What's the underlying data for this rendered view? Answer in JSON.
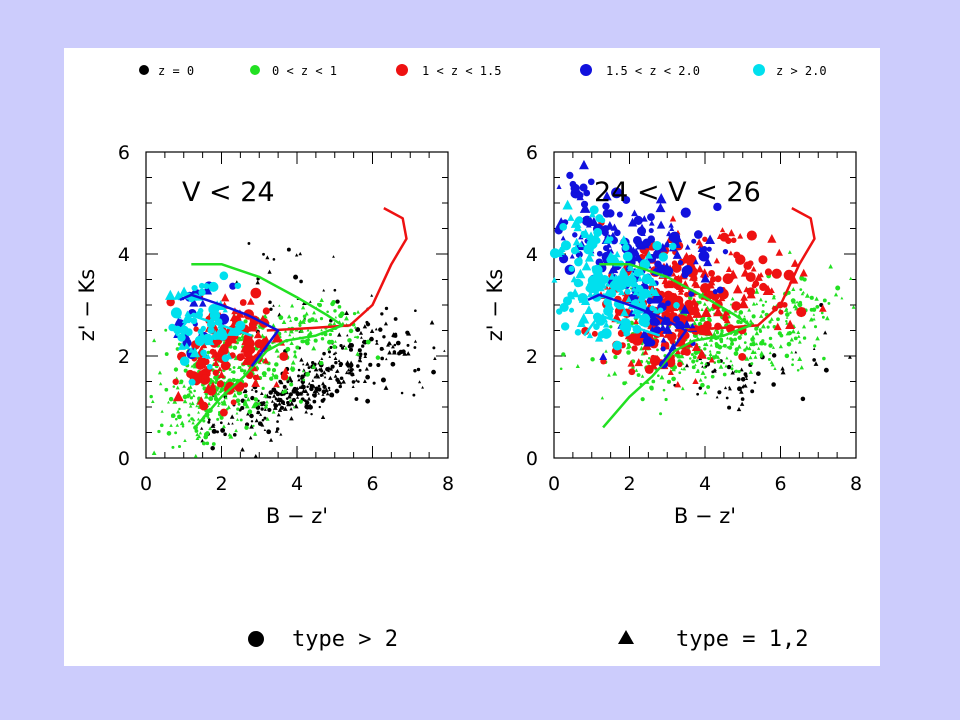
{
  "colors": {
    "page_background": "#ccccfc",
    "figure_background": "#ffffff",
    "z_0": "#000000",
    "z_0_1": "#22e022",
    "z_1_1p5": "#ee1111",
    "z_1p5_2": "#1111dd",
    "z_gt_2": "#00e0ee"
  },
  "legend": {
    "redshift": [
      {
        "label": "z = 0",
        "color": "#000000"
      },
      {
        "label": "0 < z < 1",
        "color": "#22e022"
      },
      {
        "label": "1 < z < 1.5",
        "color": "#ee1111"
      },
      {
        "label": "1.5 < z < 2.0",
        "color": "#1111dd"
      },
      {
        "label": "z > 2.0",
        "color": "#00e0ee"
      }
    ],
    "markers": [
      {
        "label": "type > 2",
        "icon": "filled-circle"
      },
      {
        "label": "type = 1,2",
        "icon": "filled-triangle"
      }
    ]
  },
  "chart_data": [
    {
      "type": "scatter",
      "panel_label": "V < 24",
      "xlabel": "B − z'",
      "ylabel": "z' − Ks",
      "xlim": [
        0,
        8
      ],
      "ylim": [
        0,
        6
      ],
      "xticks": [
        0,
        2,
        4,
        6,
        8
      ],
      "yticks": [
        0,
        2,
        4,
        6
      ],
      "grid": false,
      "series": [
        {
          "name": "z = 0",
          "color": "#000000",
          "clusters": [
            {
              "cx": 4.4,
              "cy": 1.45,
              "sx": 1.0,
              "sy": 0.3,
              "n": 260,
              "tilt": 0.35
            },
            {
              "cx": 6.3,
              "cy": 2.2,
              "sx": 1.0,
              "sy": 0.5,
              "n": 70,
              "tilt": 0.0
            },
            {
              "cx": 2.5,
              "cy": 0.9,
              "sx": 0.8,
              "sy": 0.35,
              "n": 40,
              "tilt": 0.4
            },
            {
              "cx": 3.6,
              "cy": 3.4,
              "sx": 0.8,
              "sy": 0.6,
              "n": 25,
              "tilt": 0.0
            }
          ]
        },
        {
          "name": "0 < z < 1",
          "color": "#22e022",
          "clusters": [
            {
              "cx": 2.2,
              "cy": 1.6,
              "sx": 0.8,
              "sy": 0.55,
              "n": 330,
              "tilt": 0.1
            },
            {
              "cx": 4.2,
              "cy": 2.5,
              "sx": 0.8,
              "sy": 0.35,
              "n": 120,
              "tilt": 0.0
            },
            {
              "cx": 1.3,
              "cy": 0.8,
              "sx": 0.35,
              "sy": 0.4,
              "n": 40,
              "tilt": 0.0
            }
          ]
        },
        {
          "name": "1 < z < 1.5",
          "color": "#ee1111",
          "clusters": [
            {
              "cx": 2.4,
              "cy": 2.3,
              "sx": 0.65,
              "sy": 0.45,
              "n": 110,
              "tilt": 0.0
            },
            {
              "cx": 1.5,
              "cy": 1.7,
              "sx": 0.35,
              "sy": 0.35,
              "n": 25,
              "tilt": 0.0
            }
          ]
        },
        {
          "name": "1.5 < z < 2.0",
          "color": "#1111dd",
          "clusters": [
            {
              "cx": 1.2,
              "cy": 2.8,
              "sx": 0.35,
              "sy": 0.4,
              "n": 22,
              "tilt": 0.0
            }
          ]
        },
        {
          "name": "z > 2.0",
          "color": "#00e0ee",
          "clusters": [
            {
              "cx": 1.5,
              "cy": 2.6,
              "sx": 0.4,
              "sy": 0.45,
              "n": 65,
              "tilt": 0.0
            }
          ]
        }
      ],
      "tracks": [
        {
          "color": "#ee1111",
          "points": [
            [
              3.2,
              2.5
            ],
            [
              4.4,
              2.55
            ],
            [
              5.4,
              2.6
            ],
            [
              6.0,
              3.0
            ],
            [
              6.5,
              3.8
            ],
            [
              6.9,
              4.3
            ],
            [
              6.8,
              4.7
            ],
            [
              6.3,
              4.9
            ]
          ]
        },
        {
          "color": "#22e022",
          "points": [
            [
              1.2,
              3.8
            ],
            [
              2.0,
              3.8
            ],
            [
              3.0,
              3.55
            ],
            [
              4.0,
              3.15
            ],
            [
              4.8,
              2.8
            ],
            [
              5.2,
              2.6
            ],
            [
              4.5,
              2.4
            ],
            [
              3.7,
              2.3
            ],
            [
              3.2,
              2.1
            ],
            [
              2.6,
              1.6
            ],
            [
              2.0,
              1.2
            ],
            [
              1.3,
              0.6
            ]
          ]
        },
        {
          "color": "#1111dd",
          "points": [
            [
              0.9,
              3.1
            ],
            [
              1.2,
              3.2
            ],
            [
              2.0,
              3.0
            ],
            [
              2.7,
              2.8
            ],
            [
              3.5,
              2.5
            ],
            [
              3.2,
              2.2
            ],
            [
              2.8,
              1.8
            ]
          ]
        },
        {
          "color": "#00e0ee",
          "points": [
            [
              0.8,
              2.4
            ],
            [
              1.2,
              2.8
            ],
            [
              2.0,
              2.6
            ],
            [
              2.8,
              2.4
            ]
          ]
        }
      ]
    },
    {
      "type": "scatter",
      "panel_label": "24 < V < 26",
      "xlabel": "B − z'",
      "ylabel": "z' − Ks",
      "xlim": [
        0,
        8
      ],
      "ylim": [
        0,
        6
      ],
      "xticks": [
        0,
        2,
        4,
        6,
        8
      ],
      "yticks": [
        0,
        2,
        4,
        6
      ],
      "grid": false,
      "series": [
        {
          "name": "z = 0",
          "color": "#000000",
          "clusters": [
            {
              "cx": 4.8,
              "cy": 1.55,
              "sx": 0.55,
              "sy": 0.25,
              "n": 45,
              "tilt": 0.0
            },
            {
              "cx": 7.0,
              "cy": 2.2,
              "sx": 0.5,
              "sy": 0.4,
              "n": 10,
              "tilt": 0.0
            }
          ]
        },
        {
          "name": "0 < z < 1",
          "color": "#22e022",
          "clusters": [
            {
              "cx": 4.3,
              "cy": 2.4,
              "sx": 1.1,
              "sy": 0.45,
              "n": 300,
              "tilt": 0.0
            },
            {
              "cx": 6.3,
              "cy": 2.9,
              "sx": 0.6,
              "sy": 0.35,
              "n": 80,
              "tilt": 0.0
            },
            {
              "cx": 2.6,
              "cy": 2.0,
              "sx": 0.7,
              "sy": 0.4,
              "n": 80,
              "tilt": 0.0
            }
          ]
        },
        {
          "name": "1 < z < 1.5",
          "color": "#ee1111",
          "clusters": [
            {
              "cx": 3.2,
              "cy": 3.1,
              "sx": 0.9,
              "sy": 0.65,
              "n": 200,
              "tilt": 0.0
            },
            {
              "cx": 5.3,
              "cy": 3.4,
              "sx": 0.8,
              "sy": 0.5,
              "n": 50,
              "tilt": 0.0
            },
            {
              "cx": 2.6,
              "cy": 2.2,
              "sx": 0.4,
              "sy": 0.4,
              "n": 40,
              "tilt": 0.0
            }
          ]
        },
        {
          "name": "1.5 < z < 2.0",
          "color": "#1111dd",
          "clusters": [
            {
              "cx": 2.2,
              "cy": 4.1,
              "sx": 1.0,
              "sy": 0.45,
              "n": 140,
              "tilt": 0.0
            },
            {
              "cx": 0.6,
              "cy": 5.0,
              "sx": 0.45,
              "sy": 0.5,
              "n": 25,
              "tilt": 0.0
            },
            {
              "cx": 2.8,
              "cy": 2.6,
              "sx": 0.5,
              "sy": 0.4,
              "n": 40,
              "tilt": 0.0
            }
          ]
        },
        {
          "name": "z > 2.0",
          "color": "#00e0ee",
          "clusters": [
            {
              "cx": 1.6,
              "cy": 3.3,
              "sx": 0.75,
              "sy": 0.45,
              "n": 160,
              "tilt": 0.0
            },
            {
              "cx": 0.8,
              "cy": 4.2,
              "sx": 0.4,
              "sy": 0.35,
              "n": 30,
              "tilt": 0.0
            }
          ]
        }
      ],
      "tracks": [
        {
          "color": "#ee1111",
          "points": [
            [
              3.2,
              2.5
            ],
            [
              4.4,
              2.55
            ],
            [
              5.4,
              2.6
            ],
            [
              6.0,
              3.0
            ],
            [
              6.5,
              3.8
            ],
            [
              6.9,
              4.3
            ],
            [
              6.8,
              4.7
            ],
            [
              6.3,
              4.9
            ]
          ]
        },
        {
          "color": "#22e022",
          "points": [
            [
              1.2,
              3.8
            ],
            [
              2.0,
              3.8
            ],
            [
              3.0,
              3.55
            ],
            [
              4.0,
              3.15
            ],
            [
              4.8,
              2.8
            ],
            [
              5.2,
              2.6
            ],
            [
              4.5,
              2.4
            ],
            [
              3.7,
              2.3
            ],
            [
              3.2,
              2.1
            ],
            [
              2.6,
              1.6
            ],
            [
              2.0,
              1.2
            ],
            [
              1.3,
              0.6
            ]
          ]
        },
        {
          "color": "#1111dd",
          "points": [
            [
              0.9,
              3.1
            ],
            [
              1.2,
              3.2
            ],
            [
              2.0,
              3.0
            ],
            [
              2.7,
              2.8
            ],
            [
              3.5,
              2.5
            ],
            [
              3.2,
              2.2
            ],
            [
              2.8,
              1.8
            ]
          ]
        },
        {
          "color": "#00e0ee",
          "points": [
            [
              0.8,
              2.4
            ],
            [
              1.2,
              2.8
            ],
            [
              2.0,
              2.6
            ],
            [
              2.8,
              2.4
            ]
          ]
        }
      ]
    }
  ]
}
